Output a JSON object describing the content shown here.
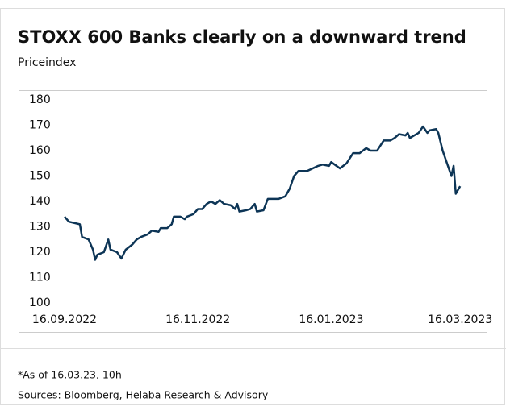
{
  "chart_data": {
    "type": "line",
    "title": "STOXX 600 Banks clearly on a downward trend",
    "subtitle": "Priceindex",
    "footnotes": [
      "*As of 16.03.23, 10h",
      "Sources: Bloomberg, Helaba Research & Advisory"
    ],
    "x": [
      "2022-09-16",
      "2022-09-18",
      "2022-09-23",
      "2022-09-24",
      "2022-09-27",
      "2022-09-29",
      "2022-09-30",
      "2022-10-01",
      "2022-10-04",
      "2022-10-06",
      "2022-10-07",
      "2022-10-10",
      "2022-10-12",
      "2022-10-14",
      "2022-10-17",
      "2022-10-19",
      "2022-10-21",
      "2022-10-24",
      "2022-10-26",
      "2022-10-29",
      "2022-10-30",
      "2022-11-02",
      "2022-11-04",
      "2022-11-05",
      "2022-11-08",
      "2022-11-10",
      "2022-11-11",
      "2022-11-14",
      "2022-11-16",
      "2022-11-18",
      "2022-11-20",
      "2022-11-22",
      "2022-11-24",
      "2022-11-26",
      "2022-11-28",
      "2022-12-01",
      "2022-12-03",
      "2022-12-04",
      "2022-12-05",
      "2022-12-08",
      "2022-12-10",
      "2022-12-12",
      "2022-12-13",
      "2022-12-16",
      "2022-12-18",
      "2022-12-23",
      "2022-12-26",
      "2022-12-28",
      "2022-12-30",
      "2023-01-01",
      "2023-01-05",
      "2023-01-10",
      "2023-01-12",
      "2023-01-15",
      "2023-01-16",
      "2023-01-20",
      "2023-01-23",
      "2023-01-26",
      "2023-01-29",
      "2023-02-01",
      "2023-02-03",
      "2023-02-06",
      "2023-02-09",
      "2023-02-12",
      "2023-02-14",
      "2023-02-16",
      "2023-02-19",
      "2023-02-20",
      "2023-02-21",
      "2023-02-23",
      "2023-02-25",
      "2023-02-27",
      "2023-03-01",
      "2023-03-02",
      "2023-03-05",
      "2023-03-06",
      "2023-03-08",
      "2023-03-10",
      "2023-03-12",
      "2023-03-13",
      "2023-03-14",
      "2023-03-16"
    ],
    "series": [
      {
        "name": "STOXX 600 Banks",
        "color": "#0d3556",
        "values": [
          134,
          132,
          131,
          126,
          125,
          121,
          117,
          119,
          120,
          125,
          121,
          120,
          117.5,
          121,
          123,
          125,
          126,
          127,
          128.5,
          128,
          129.5,
          129.5,
          131,
          134,
          134,
          133,
          134,
          135,
          137,
          137,
          139,
          140,
          139,
          140.5,
          139,
          138.5,
          137,
          139,
          136,
          136.5,
          137,
          139,
          136,
          136.5,
          141,
          141,
          142,
          145,
          150,
          152,
          152,
          154,
          154.5,
          154,
          155.5,
          153,
          155,
          159,
          159,
          161,
          160,
          160,
          164,
          164,
          165,
          166.5,
          166,
          167,
          165,
          166,
          167,
          169.5,
          167,
          168,
          168.5,
          167,
          160,
          155,
          150,
          154,
          143,
          146
        ]
      }
    ],
    "xlim": [
      "2022-09-16",
      "2023-03-27"
    ],
    "xticks": [
      {
        "value": "2022-09-16",
        "label": "16.09.2022"
      },
      {
        "value": "2022-11-16",
        "label": "16.11.2022"
      },
      {
        "value": "2023-01-16",
        "label": "16.01.2023"
      },
      {
        "value": "2023-03-16",
        "label": "16.03.2023"
      }
    ],
    "ylim": [
      100,
      180
    ],
    "yticks": [
      100,
      110,
      120,
      130,
      140,
      150,
      160,
      170,
      180
    ],
    "grid": false
  }
}
